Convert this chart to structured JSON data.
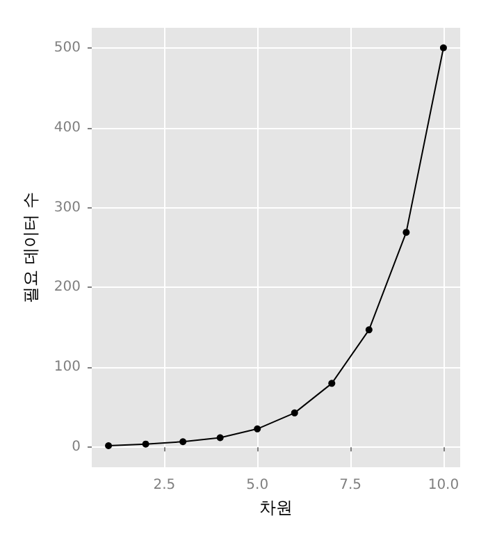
{
  "chart_data": {
    "type": "line",
    "xlabel": "차원",
    "ylabel": "필요 데이터 수",
    "x": [
      1,
      2,
      3,
      4,
      5,
      6,
      7,
      8,
      9,
      10
    ],
    "series": [
      {
        "color": "#000000",
        "values": [
          2,
          4,
          7,
          12,
          23,
          43,
          80,
          147,
          269,
          500
        ]
      }
    ],
    "xlim": [
      0.55,
      10.45
    ],
    "xticks": [
      {
        "value": 2.5,
        "label": "2.5"
      },
      {
        "value": 5,
        "label": "5.0"
      },
      {
        "value": 7.5,
        "label": "7.5"
      },
      {
        "value": 10,
        "label": "10.0"
      }
    ],
    "ylim": [
      -25,
      525
    ],
    "yticks": [
      0,
      100,
      200,
      300,
      400,
      500
    ],
    "grid": true,
    "marker": "circle",
    "line_style": "solid"
  }
}
